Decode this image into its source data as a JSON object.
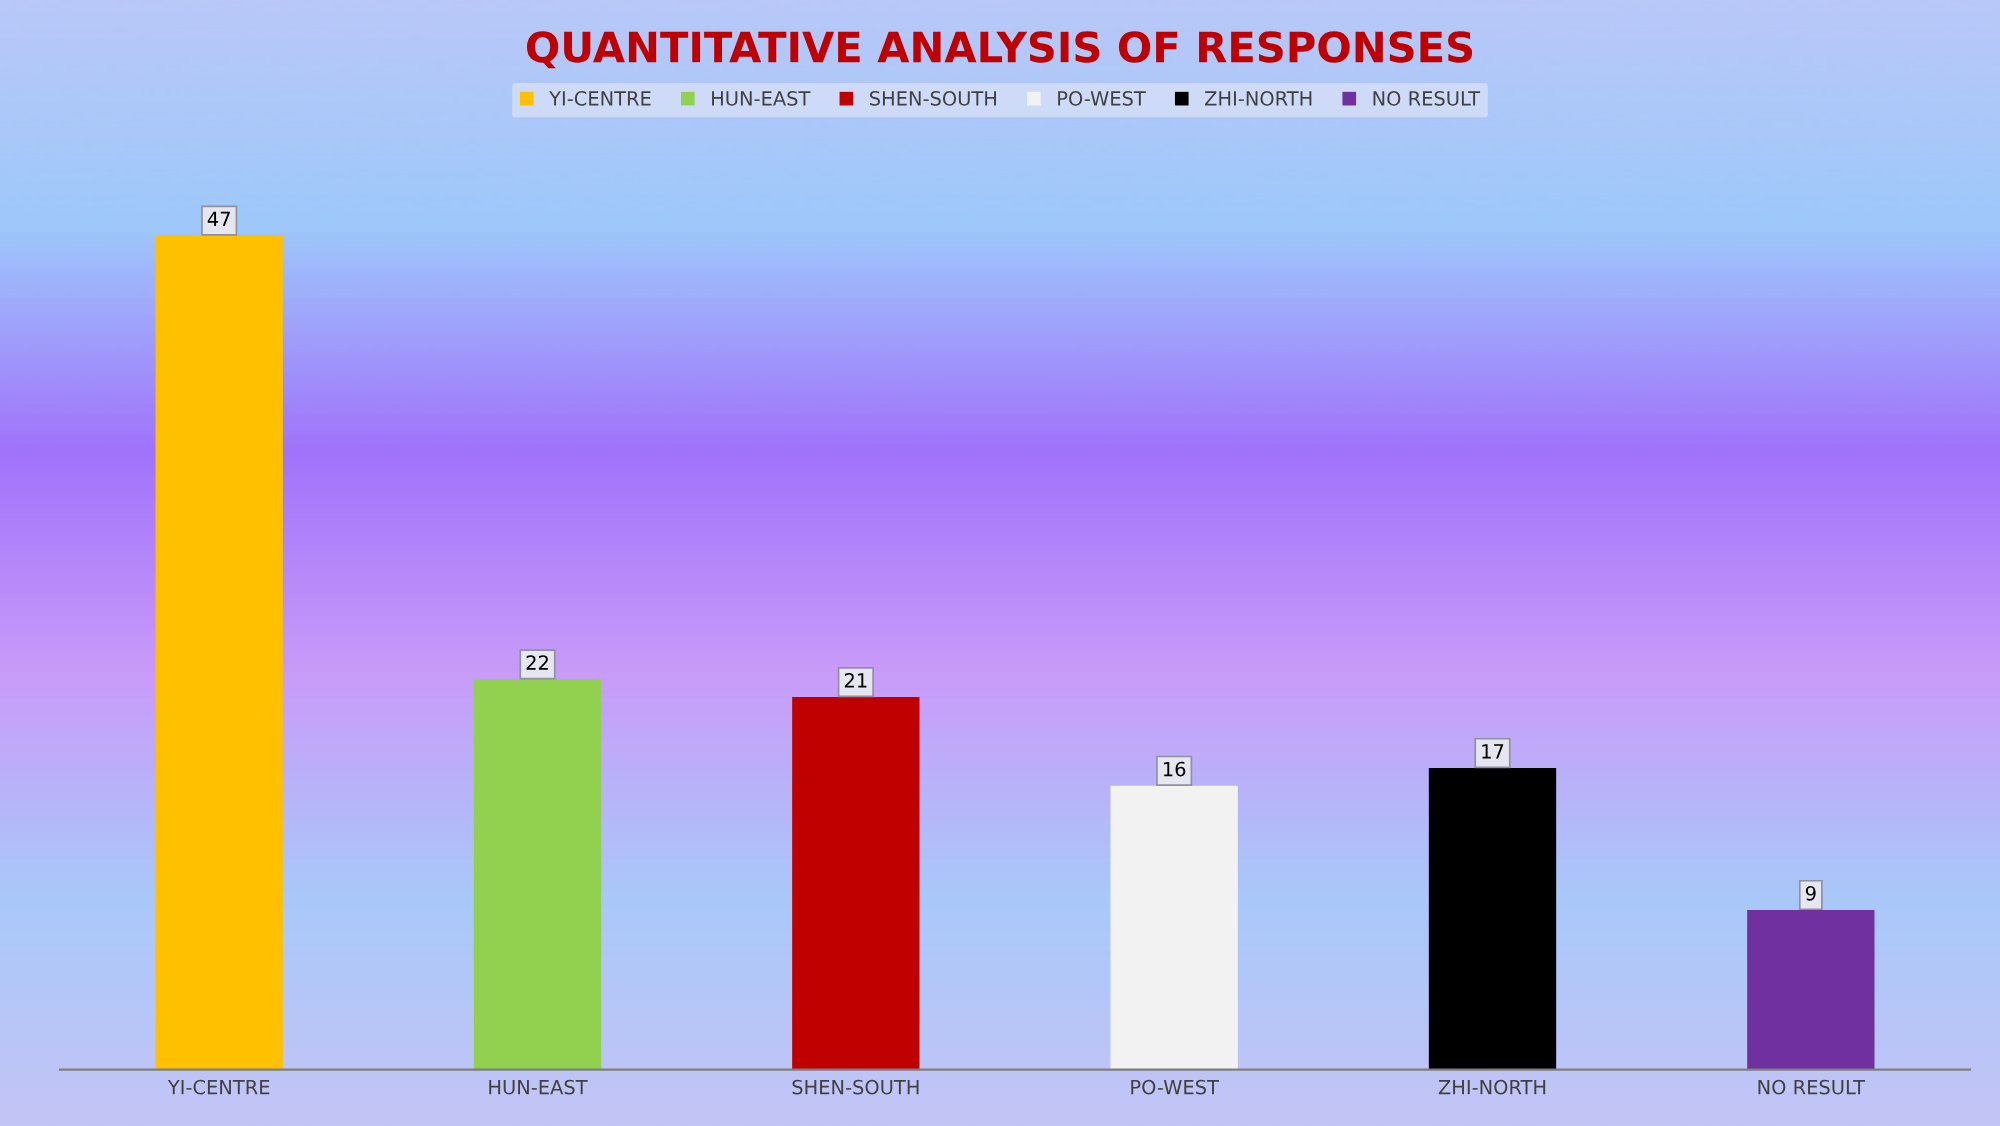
{
  "chart_data": {
    "type": "bar",
    "title": "QUANTITATIVE ANALYSIS OF RESPONSES",
    "categories": [
      "YI-CENTRE",
      "HUN-EAST",
      "SHEN-SOUTH",
      "PO-WEST",
      "ZHI-NORTH",
      "NO RESULT"
    ],
    "series": [
      {
        "name": "YI-CENTRE",
        "color": "#ffc000",
        "values": [
          47,
          null,
          null,
          null,
          null,
          null
        ]
      },
      {
        "name": "HUN-EAST",
        "color": "#92d050",
        "values": [
          null,
          22,
          null,
          null,
          null,
          null
        ]
      },
      {
        "name": "SHEN-SOUTH",
        "color": "#c00000",
        "values": [
          null,
          null,
          21,
          null,
          null,
          null
        ]
      },
      {
        "name": "PO-WEST",
        "color": "#f2f2f2",
        "values": [
          null,
          null,
          null,
          16,
          null,
          null
        ]
      },
      {
        "name": "ZHI-NORTH",
        "color": "#000000",
        "values": [
          null,
          null,
          null,
          null,
          17,
          null
        ]
      },
      {
        "name": "NO RESULT",
        "color": "#7030a0",
        "values": [
          null,
          null,
          null,
          null,
          null,
          9
        ]
      }
    ],
    "data_labels": true,
    "legend": "top"
  }
}
